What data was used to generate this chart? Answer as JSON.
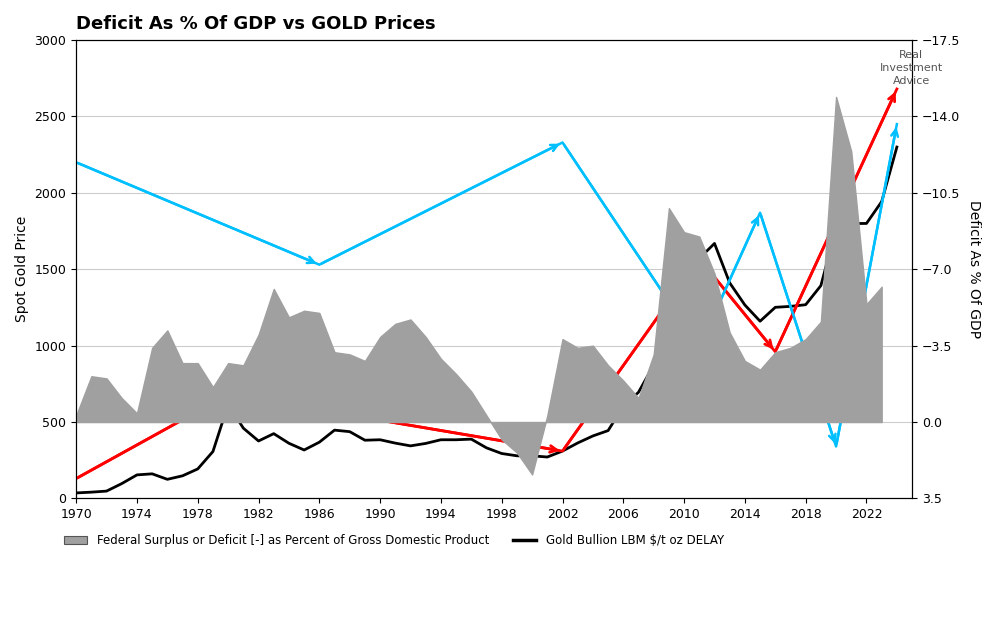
{
  "title": "Deficit As % Of GDP vs GOLD Prices",
  "ylabel_left": "Spot Gold Price",
  "ylabel_right": "Deficit As % Of GDP",
  "xlim": [
    1970,
    2025
  ],
  "ylim_left": [
    0,
    3000
  ],
  "ylim_right": [
    3.5,
    -17.5
  ],
  "yticks_left": [
    0,
    500,
    1000,
    1500,
    2000,
    2500,
    3000
  ],
  "yticks_right": [
    3.5,
    0.0,
    -3.5,
    -7.0,
    -10.5,
    -14.0,
    -17.5
  ],
  "xticks": [
    1970,
    1974,
    1978,
    1982,
    1986,
    1990,
    1994,
    1998,
    2002,
    2006,
    2010,
    2014,
    2018,
    2022
  ],
  "deficit_years": [
    1970,
    1971,
    1972,
    1973,
    1974,
    1975,
    1976,
    1977,
    1978,
    1979,
    1980,
    1981,
    1982,
    1983,
    1984,
    1985,
    1986,
    1987,
    1988,
    1989,
    1990,
    1991,
    1992,
    1993,
    1994,
    1995,
    1996,
    1997,
    1998,
    1999,
    2000,
    2001,
    2002,
    2003,
    2004,
    2005,
    2006,
    2007,
    2008,
    2009,
    2010,
    2011,
    2012,
    2013,
    2014,
    2015,
    2016,
    2017,
    2018,
    2019,
    2020,
    2021,
    2022,
    2023
  ],
  "deficit_values": [
    -0.3,
    -2.1,
    -2.0,
    -1.1,
    -0.4,
    -3.4,
    -4.2,
    -2.7,
    -2.7,
    -1.6,
    -2.7,
    -2.6,
    -4.0,
    -6.1,
    -4.8,
    -5.1,
    -5.0,
    -3.2,
    -3.1,
    -2.8,
    -3.9,
    -4.5,
    -4.7,
    -3.9,
    -2.9,
    -2.2,
    -1.4,
    -0.3,
    0.8,
    1.4,
    2.4,
    -0.3,
    -3.8,
    -3.4,
    -3.5,
    -2.6,
    -1.9,
    -1.1,
    -3.1,
    -9.8,
    -8.7,
    -8.5,
    -6.8,
    -4.1,
    -2.8,
    -2.4,
    -3.2,
    -3.4,
    -3.8,
    -4.6,
    -14.9,
    -12.4,
    -5.4,
    -6.2
  ],
  "gold_years": [
    1970,
    1971,
    1972,
    1973,
    1974,
    1975,
    1976,
    1977,
    1978,
    1979,
    1980,
    1981,
    1982,
    1983,
    1984,
    1985,
    1986,
    1987,
    1988,
    1989,
    1990,
    1991,
    1992,
    1993,
    1994,
    1995,
    1996,
    1997,
    1998,
    1999,
    2000,
    2001,
    2002,
    2003,
    2004,
    2005,
    2006,
    2007,
    2008,
    2009,
    2010,
    2011,
    2012,
    2013,
    2014,
    2015,
    2016,
    2017,
    2018,
    2019,
    2020,
    2021,
    2022,
    2023,
    2024
  ],
  "gold_values": [
    36,
    41,
    48,
    97,
    154,
    161,
    125,
    148,
    193,
    307,
    615,
    460,
    376,
    424,
    361,
    317,
    368,
    447,
    437,
    381,
    384,
    362,
    344,
    360,
    384,
    384,
    388,
    331,
    294,
    279,
    279,
    271,
    310,
    363,
    409,
    444,
    603,
    695,
    872,
    972,
    1225,
    1571,
    1669,
    1411,
    1266,
    1160,
    1251,
    1257,
    1268,
    1393,
    1769,
    1799,
    1800,
    1943,
    2300
  ],
  "red_line_points_x": [
    1970,
    1980,
    2002,
    2011,
    2016,
    2024
  ],
  "red_line_points_y": [
    130,
    680,
    310,
    1570,
    960,
    2680
  ],
  "blue_line_x": [
    1970,
    1986,
    2002,
    2011,
    2015,
    2020,
    2024
  ],
  "blue_line_y": [
    2200,
    1530,
    2330,
    990,
    1870,
    340,
    2450
  ],
  "bg_color": "#ffffff",
  "fill_color": "#a0a0a0",
  "gold_line_color": "#000000",
  "red_line_color": "#ff0000",
  "blue_line_color": "#00bfff",
  "grid_color": "#cccccc",
  "watermark_text": "Real\nInvestment\nAdvice"
}
